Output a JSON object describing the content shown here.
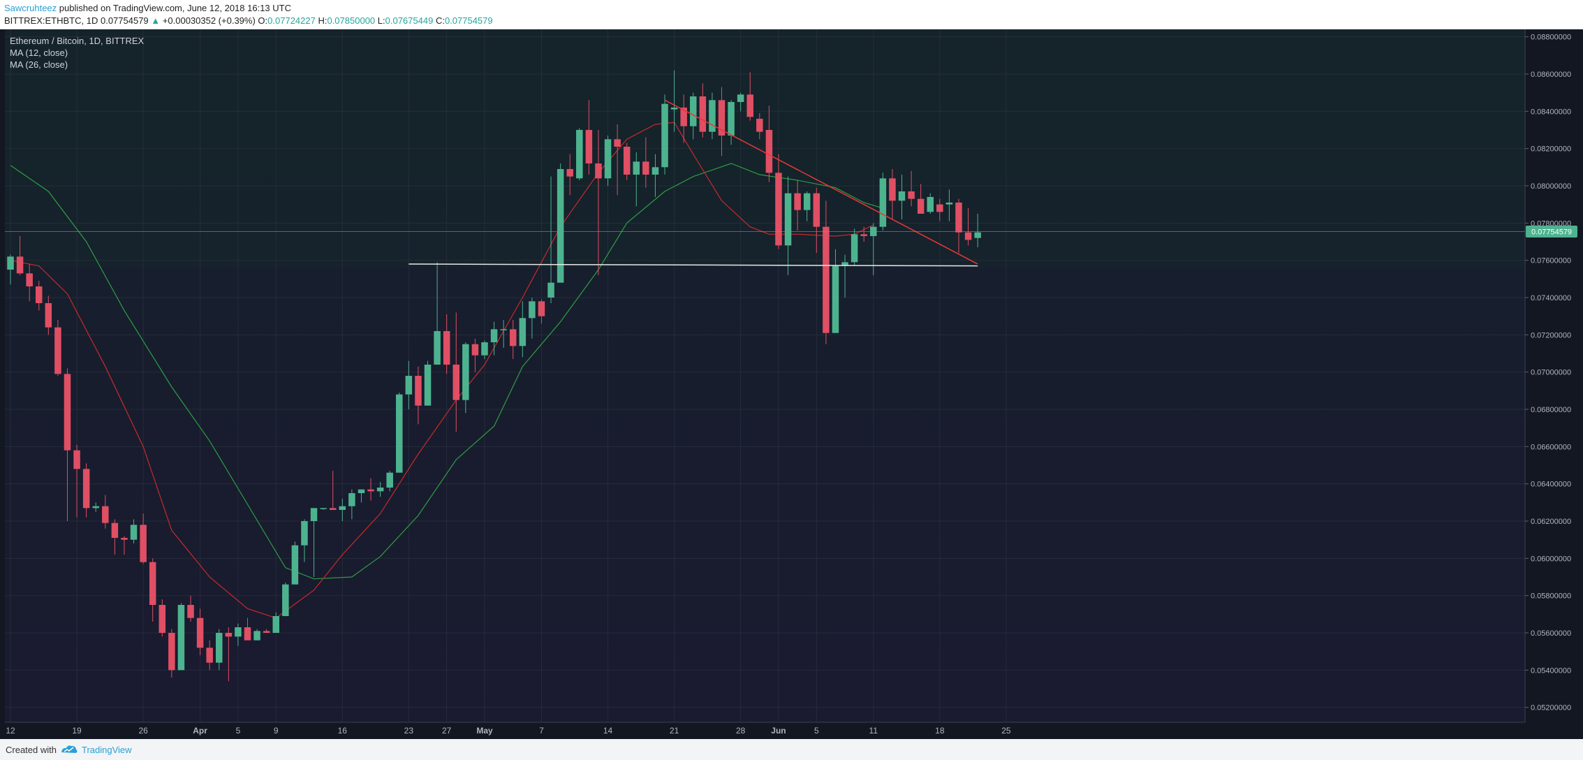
{
  "header": {
    "author": "Sawcruhteez",
    "published_text": "published on TradingView.com, June 12, 2018 16:13 UTC",
    "symbol": "BITTREX:ETHBTC, 1D",
    "price": "0.07754579",
    "change_arrow": "▲",
    "change": "+0.00030352 (+0.39%)",
    "o_label": "O:",
    "o_value": "0.07724227",
    "h_label": "H:",
    "h_value": "0.07850000",
    "l_label": "L:",
    "l_value": "0.07675449",
    "c_label": "C:",
    "c_value": "0.07754579"
  },
  "legend": {
    "title": "Ethereum / Bitcoin, 1D, BITTREX",
    "ma1": "MA (12, close)",
    "ma2": "MA (26, close)"
  },
  "footer": {
    "created_with": "Created with",
    "brand": "TradingView"
  },
  "colors": {
    "background_upper": "#15202b",
    "background_lower": "#161a2e",
    "up": "#4db38f",
    "down": "#e04f64",
    "ma12": "#c92a2a",
    "ma26": "#2e9e44",
    "trendline_red": "#e53935",
    "support_white": "#e8e8e8",
    "price_label_bg": "#4db38f",
    "axis_text": "#b2b5be",
    "grid": "#2a3340"
  },
  "chart_data": {
    "type": "candlestick",
    "symbol": "ETHBTC",
    "title": "Ethereum / Bitcoin, 1D, BITTREX",
    "y_range": [
      0.0512,
      0.0884
    ],
    "y_ticks": [
      "0.08800000",
      "0.08600000",
      "0.08400000",
      "0.08200000",
      "0.08000000",
      "0.07800000",
      "0.07600000",
      "0.07400000",
      "0.07200000",
      "0.07000000",
      "0.06800000",
      "0.06600000",
      "0.06400000",
      "0.06200000",
      "0.06000000",
      "0.05800000",
      "0.05600000",
      "0.05400000",
      "0.05200000"
    ],
    "x_ticks": [
      {
        "label": "12",
        "day": 0
      },
      {
        "label": "19",
        "day": 7
      },
      {
        "label": "26",
        "day": 14
      },
      {
        "label": "Apr",
        "day": 20
      },
      {
        "label": "5",
        "day": 24
      },
      {
        "label": "9",
        "day": 28
      },
      {
        "label": "16",
        "day": 35
      },
      {
        "label": "23",
        "day": 42
      },
      {
        "label": "27",
        "day": 46
      },
      {
        "label": "May",
        "day": 50
      },
      {
        "label": "7",
        "day": 56
      },
      {
        "label": "14",
        "day": 63
      },
      {
        "label": "21",
        "day": 70
      },
      {
        "label": "28",
        "day": 77
      },
      {
        "label": "Jun",
        "day": 81
      },
      {
        "label": "5",
        "day": 85
      },
      {
        "label": "11",
        "day": 91
      },
      {
        "label": "18",
        "day": 98
      },
      {
        "label": "25",
        "day": 105
      }
    ],
    "last_price": 0.07754579,
    "candles": [
      [
        0.0755,
        0.0763,
        0.0747,
        0.0762
      ],
      [
        0.0762,
        0.0773,
        0.0752,
        0.0753
      ],
      [
        0.0753,
        0.0758,
        0.0738,
        0.0746
      ],
      [
        0.0746,
        0.0749,
        0.0733,
        0.0737
      ],
      [
        0.0737,
        0.0741,
        0.072,
        0.0724
      ],
      [
        0.0724,
        0.0728,
        0.0698,
        0.0699
      ],
      [
        0.0699,
        0.0702,
        0.062,
        0.0658
      ],
      [
        0.0658,
        0.0661,
        0.0622,
        0.0648
      ],
      [
        0.0648,
        0.0651,
        0.0622,
        0.0627
      ],
      [
        0.0627,
        0.063,
        0.0625,
        0.0628
      ],
      [
        0.0628,
        0.0634,
        0.0616,
        0.0619
      ],
      [
        0.0619,
        0.0621,
        0.0602,
        0.0611
      ],
      [
        0.0611,
        0.0612,
        0.0602,
        0.061
      ],
      [
        0.061,
        0.0621,
        0.0608,
        0.0618
      ],
      [
        0.0618,
        0.0624,
        0.0597,
        0.0598
      ],
      [
        0.0598,
        0.06,
        0.0566,
        0.0575
      ],
      [
        0.0575,
        0.0578,
        0.0558,
        0.056
      ],
      [
        0.056,
        0.0562,
        0.0536,
        0.054
      ],
      [
        0.054,
        0.0576,
        0.054,
        0.0575
      ],
      [
        0.0575,
        0.058,
        0.0566,
        0.0568
      ],
      [
        0.0568,
        0.0573,
        0.0548,
        0.0552
      ],
      [
        0.0552,
        0.0556,
        0.054,
        0.0544
      ],
      [
        0.0544,
        0.0562,
        0.054,
        0.056
      ],
      [
        0.056,
        0.0563,
        0.0534,
        0.0558
      ],
      [
        0.0558,
        0.0565,
        0.0553,
        0.0563
      ],
      [
        0.0563,
        0.0568,
        0.0556,
        0.0556
      ],
      [
        0.0556,
        0.0562,
        0.0556,
        0.0561
      ],
      [
        0.0561,
        0.0562,
        0.056,
        0.056
      ],
      [
        0.056,
        0.0571,
        0.056,
        0.0569
      ],
      [
        0.0569,
        0.0587,
        0.0569,
        0.0586
      ],
      [
        0.0586,
        0.0609,
        0.0586,
        0.0607
      ],
      [
        0.0607,
        0.0621,
        0.0598,
        0.062
      ],
      [
        0.062,
        0.0626,
        0.059,
        0.0627
      ],
      [
        0.0627,
        0.0627,
        0.0626,
        0.0627
      ],
      [
        0.0627,
        0.0647,
        0.0627,
        0.0626
      ],
      [
        0.0626,
        0.0632,
        0.062,
        0.0628
      ],
      [
        0.0628,
        0.0637,
        0.0621,
        0.0635
      ],
      [
        0.0635,
        0.0637,
        0.063,
        0.0637
      ],
      [
        0.0637,
        0.0643,
        0.0631,
        0.0636
      ],
      [
        0.0636,
        0.0641,
        0.0633,
        0.0638
      ],
      [
        0.0638,
        0.0647,
        0.0636,
        0.0646
      ],
      [
        0.0646,
        0.0689,
        0.0646,
        0.0688
      ],
      [
        0.0688,
        0.0706,
        0.068,
        0.0698
      ],
      [
        0.0698,
        0.0703,
        0.0672,
        0.0682
      ],
      [
        0.0682,
        0.0706,
        0.0682,
        0.0704
      ],
      [
        0.0704,
        0.0759,
        0.0704,
        0.0722
      ],
      [
        0.0722,
        0.0731,
        0.0699,
        0.0704
      ],
      [
        0.0704,
        0.0732,
        0.0668,
        0.0685
      ],
      [
        0.0685,
        0.0716,
        0.0678,
        0.0715
      ],
      [
        0.0715,
        0.0718,
        0.07,
        0.0709
      ],
      [
        0.0709,
        0.0717,
        0.0707,
        0.0716
      ],
      [
        0.0716,
        0.0727,
        0.0709,
        0.0723
      ],
      [
        0.0723,
        0.0728,
        0.0713,
        0.0723
      ],
      [
        0.0723,
        0.0728,
        0.0707,
        0.0714
      ],
      [
        0.0714,
        0.0738,
        0.0708,
        0.0729
      ],
      [
        0.0729,
        0.074,
        0.0718,
        0.0738
      ],
      [
        0.0738,
        0.0739,
        0.0726,
        0.073
      ],
      [
        0.074,
        0.0805,
        0.0737,
        0.0748
      ],
      [
        0.0748,
        0.0812,
        0.0748,
        0.0809
      ],
      [
        0.0809,
        0.0817,
        0.0795,
        0.0805
      ],
      [
        0.0804,
        0.0831,
        0.0803,
        0.083
      ],
      [
        0.083,
        0.0846,
        0.0806,
        0.0812
      ],
      [
        0.0812,
        0.083,
        0.0752,
        0.0804
      ],
      [
        0.0804,
        0.0827,
        0.08,
        0.0825
      ],
      [
        0.0825,
        0.0833,
        0.0795,
        0.0821
      ],
      [
        0.0821,
        0.0823,
        0.0803,
        0.0806
      ],
      [
        0.0806,
        0.0818,
        0.0789,
        0.0813
      ],
      [
        0.0813,
        0.0826,
        0.0799,
        0.0806
      ],
      [
        0.0806,
        0.0817,
        0.0794,
        0.081
      ],
      [
        0.081,
        0.0849,
        0.0806,
        0.0844
      ],
      [
        0.0841,
        0.0862,
        0.0829,
        0.0842
      ],
      [
        0.0842,
        0.0849,
        0.0823,
        0.0832
      ],
      [
        0.0832,
        0.085,
        0.0825,
        0.0848
      ],
      [
        0.0848,
        0.0855,
        0.0826,
        0.0829
      ],
      [
        0.0829,
        0.085,
        0.0825,
        0.0846
      ],
      [
        0.0846,
        0.0853,
        0.0816,
        0.0827
      ],
      [
        0.0827,
        0.0846,
        0.0822,
        0.0845
      ],
      [
        0.0845,
        0.085,
        0.084,
        0.0849
      ],
      [
        0.0849,
        0.0861,
        0.0835,
        0.0837
      ],
      [
        0.0836,
        0.0839,
        0.0825,
        0.0829
      ],
      [
        0.083,
        0.0843,
        0.0802,
        0.0807
      ],
      [
        0.0807,
        0.0817,
        0.0766,
        0.0768
      ],
      [
        0.0768,
        0.0805,
        0.0752,
        0.0796
      ],
      [
        0.0796,
        0.0803,
        0.0776,
        0.0787
      ],
      [
        0.0787,
        0.0797,
        0.0781,
        0.0796
      ],
      [
        0.0796,
        0.0799,
        0.0764,
        0.0778
      ],
      [
        0.0778,
        0.0792,
        0.0715,
        0.0721
      ],
      [
        0.0721,
        0.0766,
        0.0721,
        0.0757
      ],
      [
        0.0757,
        0.0763,
        0.074,
        0.0759
      ],
      [
        0.0759,
        0.0777,
        0.0757,
        0.0774
      ],
      [
        0.0774,
        0.0778,
        0.077,
        0.0773
      ],
      [
        0.0773,
        0.078,
        0.0752,
        0.0778
      ],
      [
        0.0778,
        0.0807,
        0.0776,
        0.0804
      ],
      [
        0.0804,
        0.0809,
        0.0782,
        0.0792
      ],
      [
        0.0792,
        0.0806,
        0.0782,
        0.0797
      ],
      [
        0.0797,
        0.0808,
        0.0789,
        0.0793
      ],
      [
        0.0793,
        0.0801,
        0.0785,
        0.0785
      ],
      [
        0.0786,
        0.0796,
        0.0785,
        0.0794
      ],
      [
        0.079,
        0.0793,
        0.0781,
        0.0786
      ],
      [
        0.079,
        0.0798,
        0.0781,
        0.0791
      ],
      [
        0.0791,
        0.0793,
        0.0764,
        0.0775
      ],
      [
        0.0775,
        0.0788,
        0.0768,
        0.0771
      ],
      [
        0.0772,
        0.0785,
        0.0767,
        0.0775
      ]
    ],
    "ma12": [
      [
        0,
        0.076
      ],
      [
        3,
        0.0757
      ],
      [
        6,
        0.0742
      ],
      [
        10,
        0.0703
      ],
      [
        14,
        0.066
      ],
      [
        17,
        0.0615
      ],
      [
        21,
        0.059
      ],
      [
        25,
        0.0573
      ],
      [
        28,
        0.0568
      ],
      [
        32,
        0.0583
      ],
      [
        35,
        0.0602
      ],
      [
        39,
        0.0624
      ],
      [
        43,
        0.0656
      ],
      [
        47,
        0.0685
      ],
      [
        50,
        0.0704
      ],
      [
        54,
        0.074
      ],
      [
        58,
        0.0778
      ],
      [
        62,
        0.0807
      ],
      [
        65,
        0.0825
      ],
      [
        68,
        0.0833
      ],
      [
        70,
        0.0834
      ],
      [
        72,
        0.0817
      ],
      [
        75,
        0.0792
      ],
      [
        78,
        0.0778
      ],
      [
        80,
        0.0774
      ],
      [
        83,
        0.0774
      ],
      [
        87,
        0.0773
      ],
      [
        89,
        0.0774
      ],
      [
        91,
        0.0779
      ]
    ],
    "ma26": [
      [
        0,
        0.0811
      ],
      [
        4,
        0.0797
      ],
      [
        8,
        0.077
      ],
      [
        12,
        0.0733
      ],
      [
        17,
        0.0692
      ],
      [
        21,
        0.0663
      ],
      [
        25,
        0.0629
      ],
      [
        29,
        0.0595
      ],
      [
        32,
        0.0589
      ],
      [
        36,
        0.059
      ],
      [
        39,
        0.0601
      ],
      [
        43,
        0.0623
      ],
      [
        47,
        0.0653
      ],
      [
        51,
        0.0671
      ],
      [
        54,
        0.0703
      ],
      [
        58,
        0.0727
      ],
      [
        62,
        0.0755
      ],
      [
        65,
        0.078
      ],
      [
        69,
        0.0797
      ],
      [
        72,
        0.0805
      ],
      [
        76,
        0.0812
      ],
      [
        79,
        0.0806
      ],
      [
        83,
        0.0803
      ],
      [
        87,
        0.0799
      ],
      [
        90,
        0.0791
      ],
      [
        92,
        0.0788
      ]
    ],
    "trendline_resistance": [
      [
        69,
        0.0846
      ],
      [
        102,
        0.0758
      ]
    ],
    "support_line": [
      [
        42,
        0.0758
      ],
      [
        102,
        0.0757
      ]
    ]
  }
}
